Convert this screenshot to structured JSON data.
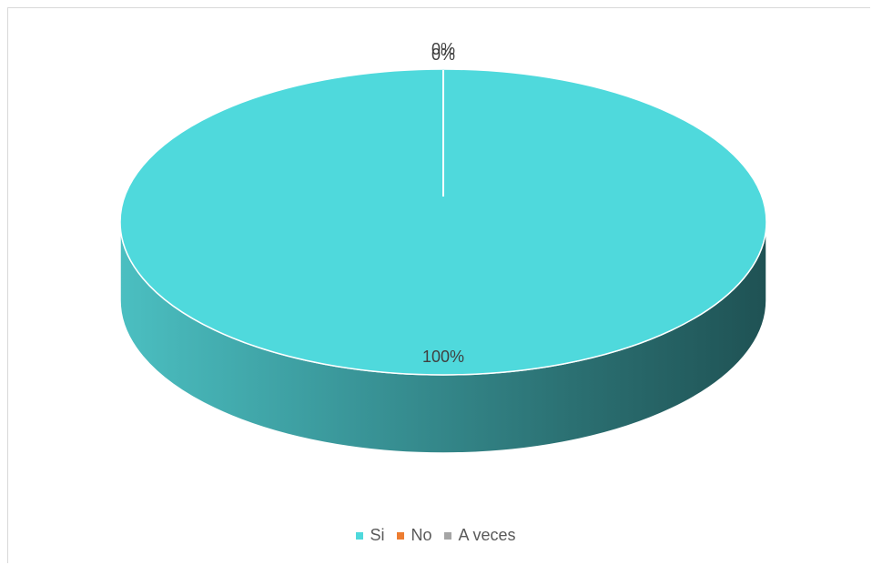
{
  "chart_data": {
    "type": "pie",
    "title": "",
    "categories": [
      "Si",
      "No",
      "A veces"
    ],
    "values": [
      100,
      0,
      0
    ],
    "data_labels": [
      "100%",
      "0%",
      "0%"
    ],
    "colors": [
      "#4fd9dc",
      "#ed7d31",
      "#a5a5a5"
    ],
    "legend_position": "bottom",
    "style": "3d"
  }
}
